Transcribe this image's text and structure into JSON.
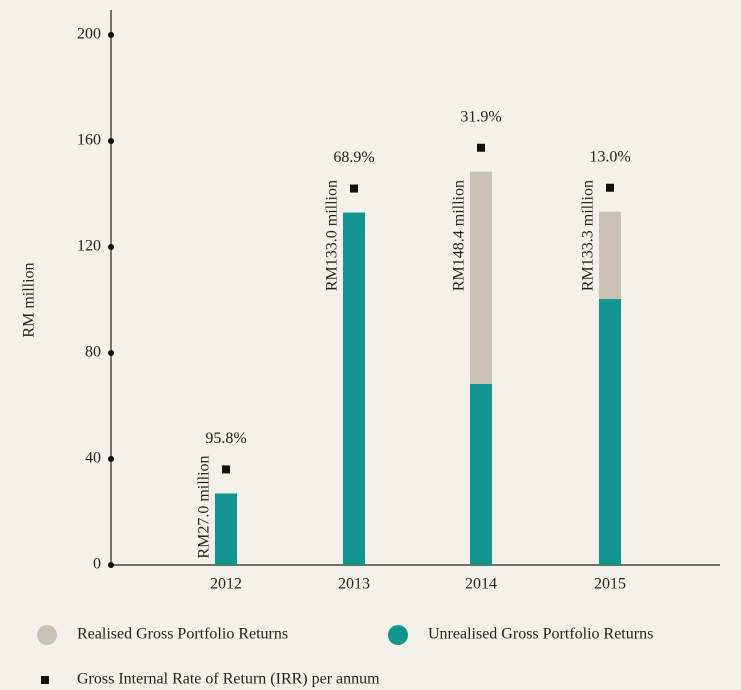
{
  "chart_data": {
    "type": "stacked_bar",
    "y_label": "RM million",
    "categories": [
      "2012",
      "2013",
      "2014",
      "2015"
    ],
    "series": [
      {
        "name": "Unrealised Gross Portfolio Returns",
        "color": "#12948f",
        "values": [
          27.0,
          133.0,
          68.3,
          100.4
        ]
      },
      {
        "name": "Realised Gross Portfolio Returns",
        "color": "#c8c2b4",
        "values": [
          0,
          0,
          80.1,
          32.9
        ]
      }
    ],
    "total_labels": [
      "RM27.0 million",
      "RM133.0 million",
      "RM148.4 million",
      "RM133.3 million"
    ],
    "irr": {
      "name": "Gross Internal Rate of Return (IRR) per annum",
      "values": [
        95.8,
        68.9,
        31.9,
        13.0
      ],
      "value_labels": [
        "95.8%",
        "68.9%",
        "31.9%",
        "13.0%"
      ]
    },
    "ylim": [
      0,
      200
    ],
    "yticks": [
      0,
      40,
      80,
      120,
      160,
      200
    ]
  }
}
